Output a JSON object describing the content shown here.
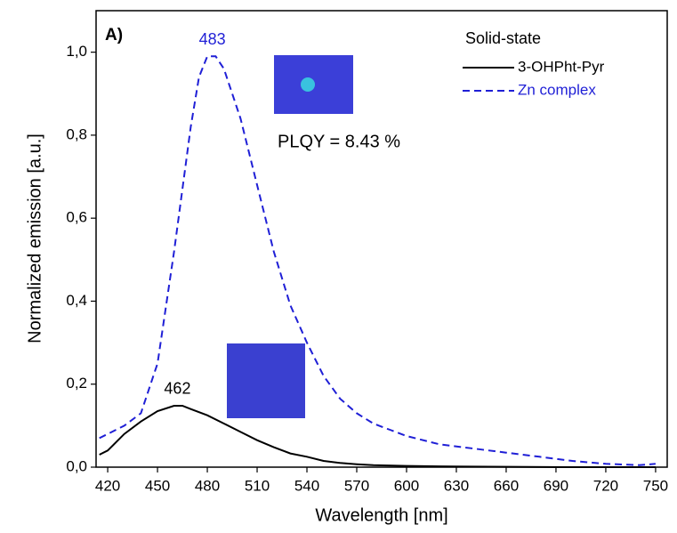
{
  "chart_data": {
    "type": "line",
    "panel_label": "A)",
    "xlabel": "Wavelength [nm]",
    "ylabel": "Normalized emission [a.u.]",
    "xlim": [
      413,
      757
    ],
    "ylim": [
      0,
      1.1
    ],
    "xticks": [
      420,
      450,
      480,
      510,
      540,
      570,
      600,
      630,
      660,
      690,
      720,
      750
    ],
    "yticks": [
      {
        "value": 0,
        "label": "0,0"
      },
      {
        "value": 0.2,
        "label": "0,2"
      },
      {
        "value": 0.4,
        "label": "0,4"
      },
      {
        "value": 0.6,
        "label": "0,6"
      },
      {
        "value": 0.8,
        "label": "0,8"
      },
      {
        "value": 1.0,
        "label": "1,0"
      }
    ],
    "legend_title": "Solid-state",
    "legend": "upper right",
    "series": [
      {
        "name": "3-OHPht-Pyr",
        "color": "#000000",
        "dash": "solid",
        "x": [
          415,
          420,
          430,
          440,
          450,
          460,
          465,
          470,
          480,
          490,
          500,
          510,
          520,
          530,
          540,
          550,
          560,
          570,
          580,
          600,
          620,
          650,
          700,
          750
        ],
        "values": [
          0.03,
          0.04,
          0.08,
          0.11,
          0.135,
          0.148,
          0.148,
          0.14,
          0.125,
          0.105,
          0.085,
          0.065,
          0.048,
          0.033,
          0.025,
          0.015,
          0.01,
          0.007,
          0.005,
          0.003,
          0.002,
          0.001,
          0,
          0
        ],
        "peak_label": "462",
        "peak_x": 462,
        "peak_y": 0.148
      },
      {
        "name": "Zn complex",
        "color": "#1f1fd6",
        "dash": "dashed",
        "x": [
          415,
          420,
          430,
          440,
          450,
          460,
          470,
          475,
          480,
          485,
          490,
          500,
          510,
          520,
          530,
          540,
          550,
          560,
          570,
          580,
          590,
          600,
          620,
          640,
          660,
          680,
          700,
          720,
          740,
          750
        ],
        "values": [
          0.07,
          0.08,
          0.1,
          0.13,
          0.25,
          0.52,
          0.82,
          0.94,
          0.99,
          0.99,
          0.96,
          0.84,
          0.68,
          0.52,
          0.39,
          0.3,
          0.22,
          0.165,
          0.13,
          0.105,
          0.09,
          0.075,
          0.055,
          0.045,
          0.035,
          0.025,
          0.015,
          0.008,
          0.005,
          0.008
        ],
        "peak_label": "483",
        "peak_x": 483,
        "peak_y": 0.99
      }
    ],
    "annotation": "PLQY = 8.43 %"
  }
}
